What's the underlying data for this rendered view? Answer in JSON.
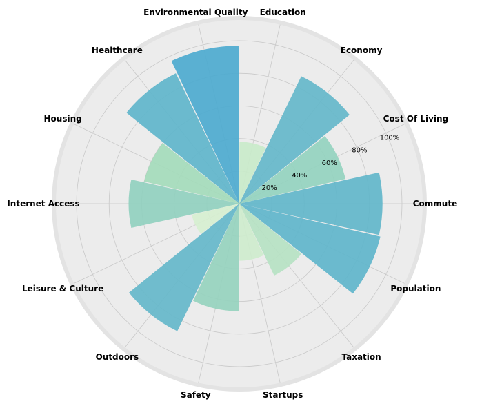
{
  "chart_data": {
    "type": "polar-bar",
    "categories": [
      "Commute",
      "Cost Of Living",
      "Economy",
      "Education",
      "Environmental Quality",
      "Healthcare",
      "Housing",
      "Internet Access",
      "Leisure & Culture",
      "Outdoors",
      "Safety",
      "Startups",
      "Taxation",
      "Population"
    ],
    "values": [
      88,
      67,
      87,
      38,
      97,
      89,
      60,
      68,
      30,
      87,
      66,
      35,
      49,
      89
    ],
    "radial_ticks": [
      "20%",
      "40%",
      "60%",
      "80%",
      "100%"
    ],
    "radial_tick_values": [
      20,
      40,
      60,
      80,
      100
    ],
    "rlim": [
      0,
      100
    ],
    "grid": true,
    "colormap": "GnBu",
    "colors": {
      "background": "#ececec",
      "outer_ring": "#e3e3e3",
      "grid": "#c8c8c8",
      "bar_low": "#d6efd0",
      "bar_mid": "#a4dbbb",
      "bar_high": "#4daacf"
    }
  }
}
